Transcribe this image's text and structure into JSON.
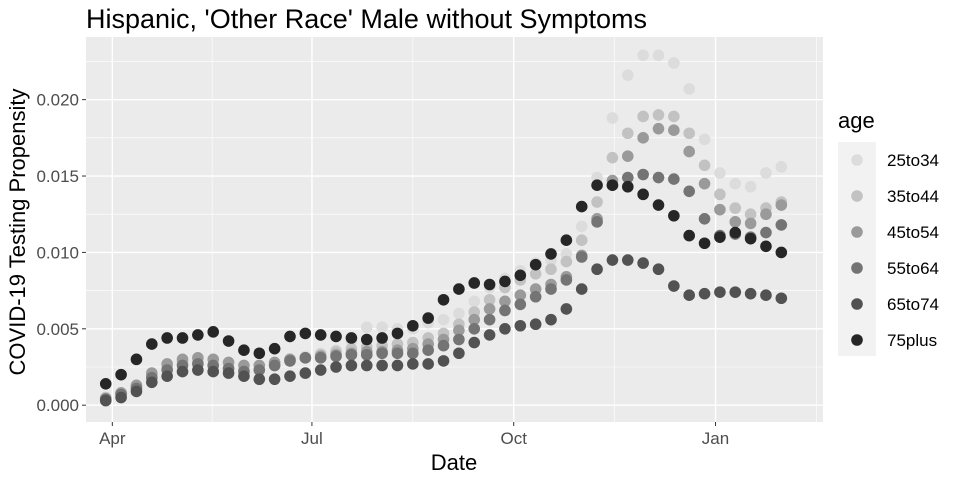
{
  "chart_data": {
    "type": "scatter",
    "title": "Hispanic, 'Other Race' Male without Symptoms",
    "xlabel": "Date",
    "ylabel": "COVID-19 Testing Propensity",
    "x_type": "date",
    "xlim": [
      "2020-03-20",
      "2021-02-19"
    ],
    "ylim": [
      -0.0011,
      0.0241
    ],
    "x_ticks": [
      {
        "value": "2020-04-01",
        "label": "Apr"
      },
      {
        "value": "2020-07-01",
        "label": "Jul"
      },
      {
        "value": "2020-10-01",
        "label": "Oct"
      },
      {
        "value": "2021-01-01",
        "label": "Jan"
      }
    ],
    "y_ticks": [
      {
        "value": 0.0,
        "label": "0.000"
      },
      {
        "value": 0.005,
        "label": "0.005"
      },
      {
        "value": 0.01,
        "label": "0.010"
      },
      {
        "value": 0.015,
        "label": "0.015"
      },
      {
        "value": 0.02,
        "label": "0.020"
      }
    ],
    "grid": true,
    "legend": {
      "title": "age",
      "position": "right"
    },
    "x": [
      "2020-03-29",
      "2020-04-05",
      "2020-04-12",
      "2020-04-19",
      "2020-04-26",
      "2020-05-03",
      "2020-05-10",
      "2020-05-17",
      "2020-05-24",
      "2020-05-31",
      "2020-06-07",
      "2020-06-14",
      "2020-06-21",
      "2020-06-28",
      "2020-07-05",
      "2020-07-12",
      "2020-07-19",
      "2020-07-26",
      "2020-08-02",
      "2020-08-09",
      "2020-08-16",
      "2020-08-23",
      "2020-08-30",
      "2020-09-06",
      "2020-09-13",
      "2020-09-20",
      "2020-09-27",
      "2020-10-04",
      "2020-10-11",
      "2020-10-18",
      "2020-10-25",
      "2020-11-01",
      "2020-11-08",
      "2020-11-15",
      "2020-11-22",
      "2020-11-29",
      "2020-12-06",
      "2020-12-13",
      "2020-12-20",
      "2020-12-27",
      "2021-01-03",
      "2021-01-10",
      "2021-01-17",
      "2021-01-24",
      "2021-01-31"
    ],
    "series": [
      {
        "name": "25to34",
        "color": "#dcdcdc",
        "values": [
          0.0005,
          0.0008,
          0.0012,
          0.002,
          0.0025,
          0.0027,
          0.0028,
          0.0026,
          0.0024,
          0.0023,
          0.0023,
          0.0027,
          0.003,
          0.0032,
          0.0034,
          0.0036,
          0.0042,
          0.0051,
          0.0051,
          0.005,
          0.005,
          0.0054,
          0.0056,
          0.006,
          0.0068,
          0.0077,
          0.0083,
          0.0088,
          0.0093,
          0.0095,
          0.0099,
          0.0117,
          0.0149,
          0.0188,
          0.0216,
          0.0229,
          0.0229,
          0.0224,
          0.0207,
          0.0174,
          0.0152,
          0.0145,
          0.0143,
          0.0152,
          0.0156
        ]
      },
      {
        "name": "35to44",
        "color": "#c2c2c2",
        "values": [
          0.0005,
          0.0008,
          0.0012,
          0.002,
          0.0025,
          0.0028,
          0.0028,
          0.0026,
          0.0024,
          0.0023,
          0.0023,
          0.0026,
          0.0029,
          0.0031,
          0.0033,
          0.0035,
          0.0037,
          0.0038,
          0.0039,
          0.004,
          0.0041,
          0.0044,
          0.0047,
          0.0053,
          0.0061,
          0.0069,
          0.0077,
          0.0082,
          0.0086,
          0.0089,
          0.0094,
          0.0108,
          0.0133,
          0.0162,
          0.0178,
          0.0189,
          0.019,
          0.0189,
          0.0178,
          0.0157,
          0.0138,
          0.0129,
          0.0125,
          0.0129,
          0.0133
        ]
      },
      {
        "name": "45to54",
        "color": "#9a9a9a",
        "values": [
          0.0004,
          0.0008,
          0.0013,
          0.0021,
          0.0027,
          0.003,
          0.0031,
          0.003,
          0.0028,
          0.0026,
          0.0026,
          0.0028,
          0.003,
          0.0031,
          0.0032,
          0.0033,
          0.0034,
          0.0035,
          0.0035,
          0.0036,
          0.0037,
          0.004,
          0.0043,
          0.0049,
          0.0056,
          0.0063,
          0.0068,
          0.0072,
          0.0076,
          0.0079,
          0.0084,
          0.0098,
          0.0122,
          0.0147,
          0.0163,
          0.0175,
          0.0181,
          0.018,
          0.0166,
          0.0145,
          0.0128,
          0.012,
          0.0119,
          0.0125,
          0.0131
        ]
      },
      {
        "name": "55to64",
        "color": "#747474",
        "values": [
          0.0004,
          0.0007,
          0.0011,
          0.0018,
          0.0023,
          0.0026,
          0.0027,
          0.0026,
          0.0024,
          0.0022,
          0.0023,
          0.0026,
          0.0029,
          0.0031,
          0.0031,
          0.0032,
          0.0033,
          0.0033,
          0.0034,
          0.0034,
          0.0034,
          0.0036,
          0.0039,
          0.0043,
          0.005,
          0.0056,
          0.0062,
          0.0066,
          0.0071,
          0.0076,
          0.0082,
          0.0097,
          0.012,
          0.0144,
          0.0149,
          0.0151,
          0.0149,
          0.0148,
          0.014,
          0.0122,
          0.0111,
          0.0112,
          0.011,
          0.0113,
          0.0118
        ]
      },
      {
        "name": "65to74",
        "color": "#525252",
        "values": [
          0.0003,
          0.0005,
          0.0009,
          0.0015,
          0.0019,
          0.0022,
          0.0023,
          0.0022,
          0.0021,
          0.0019,
          0.0017,
          0.0017,
          0.0019,
          0.0021,
          0.0023,
          0.0025,
          0.0026,
          0.0026,
          0.0026,
          0.0026,
          0.0027,
          0.0027,
          0.0029,
          0.0034,
          0.0041,
          0.0046,
          0.005,
          0.0052,
          0.0053,
          0.0056,
          0.0063,
          0.0076,
          0.0089,
          0.0095,
          0.0095,
          0.0093,
          0.0089,
          0.0078,
          0.0072,
          0.0073,
          0.0074,
          0.0074,
          0.0073,
          0.0072,
          0.007
        ]
      },
      {
        "name": "75plus",
        "color": "#262626",
        "values": [
          0.0014,
          0.002,
          0.003,
          0.004,
          0.0044,
          0.0044,
          0.0046,
          0.0048,
          0.0042,
          0.0036,
          0.0034,
          0.0037,
          0.0045,
          0.0047,
          0.0046,
          0.0045,
          0.0044,
          0.0043,
          0.0044,
          0.0047,
          0.0052,
          0.0057,
          0.0069,
          0.0076,
          0.008,
          0.0079,
          0.0081,
          0.0085,
          0.0092,
          0.0099,
          0.0108,
          0.013,
          0.0144,
          0.0144,
          0.0143,
          0.0138,
          0.0131,
          0.0124,
          0.0111,
          0.0106,
          0.011,
          0.0113,
          0.0109,
          0.0104,
          0.01
        ]
      }
    ]
  }
}
